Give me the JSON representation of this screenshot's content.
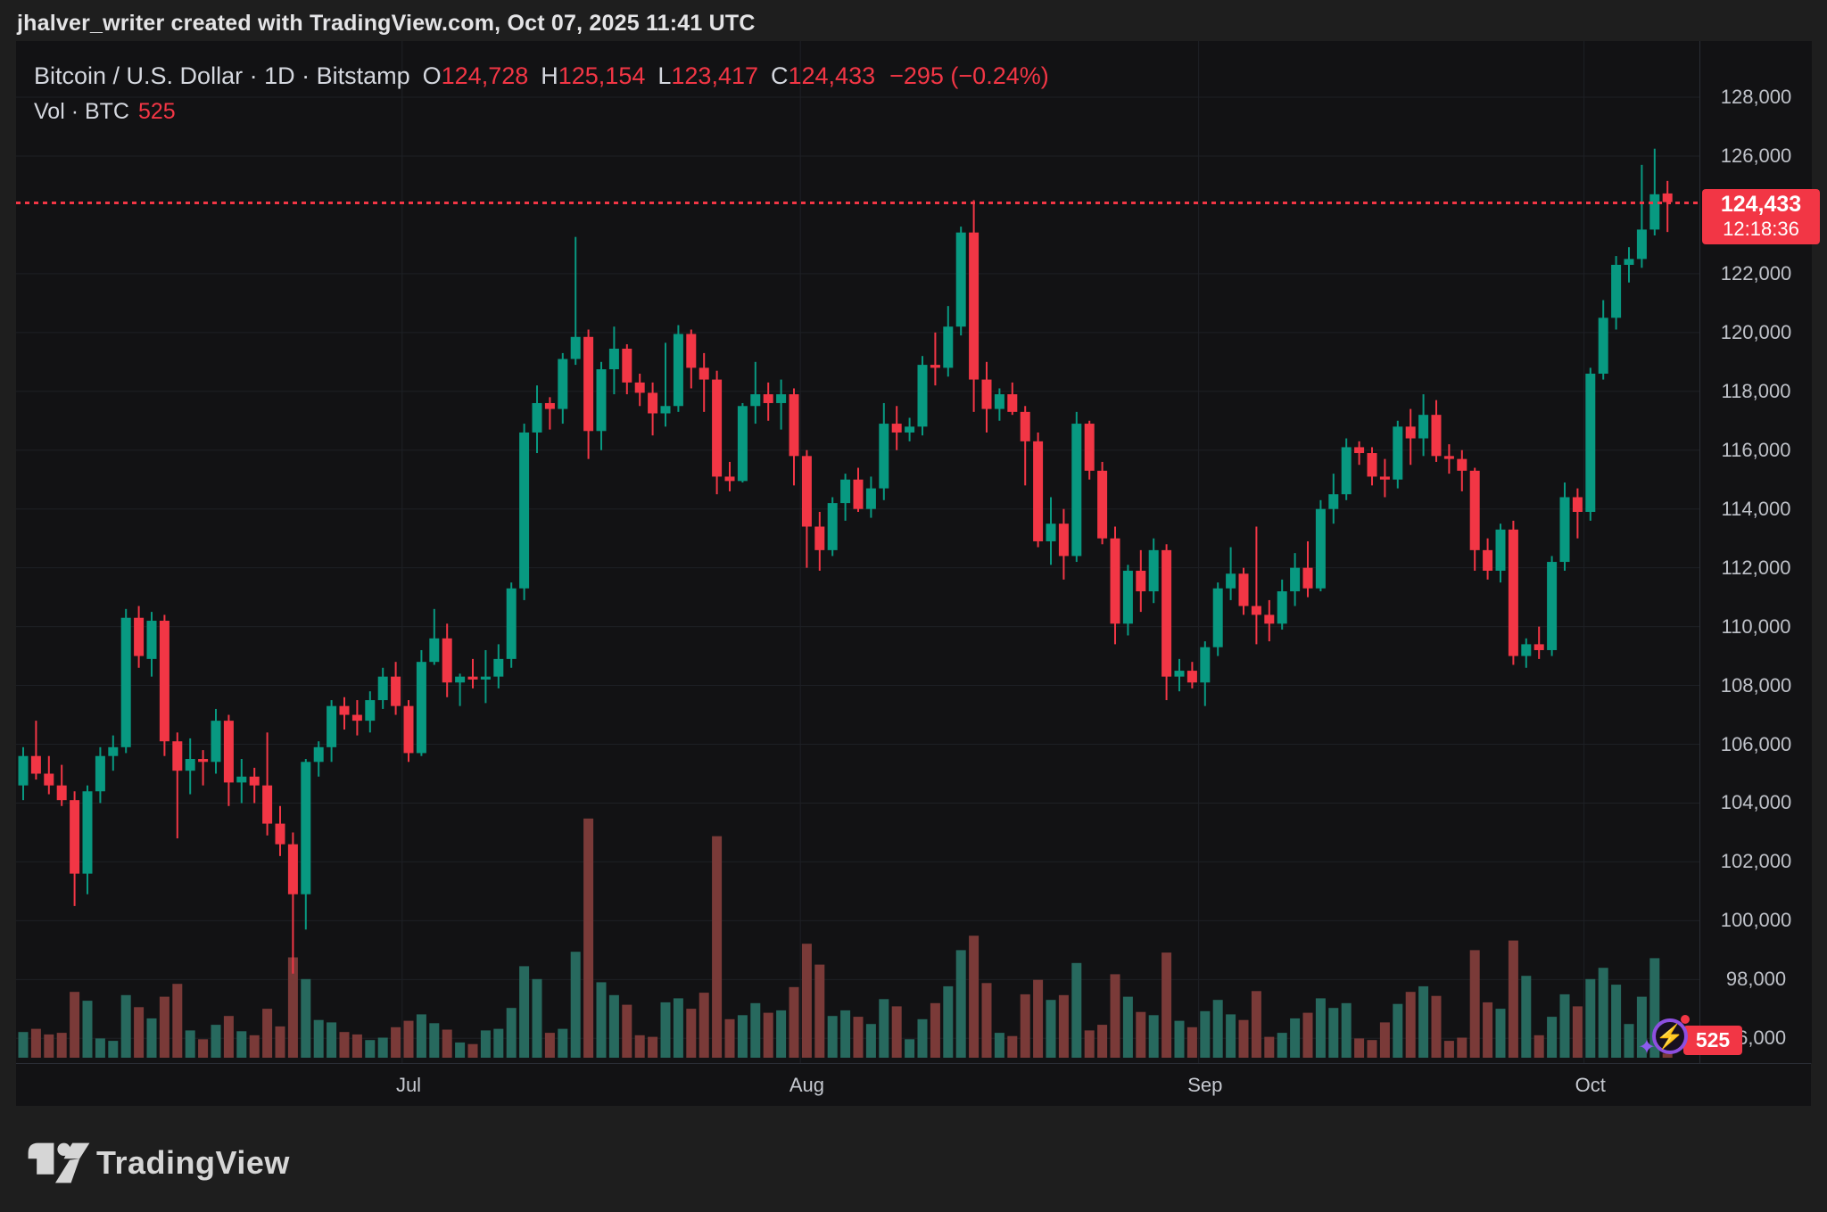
{
  "attribution": "jhalver_writer created with TradingView.com, Oct 07, 2025 11:41 UTC",
  "header": {
    "symbol_line": "Bitcoin / U.S. Dollar · 1D · Bitstamp",
    "ohlc": [
      {
        "k": "O",
        "v": "124,728"
      },
      {
        "k": "H",
        "v": "125,154"
      },
      {
        "k": "L",
        "v": "123,417"
      },
      {
        "k": "C",
        "v": "124,433"
      }
    ],
    "change": "−295 (−0.24%)",
    "vol_label": "Vol · BTC",
    "vol_value": "525"
  },
  "current": {
    "price": 124433,
    "price_label": "124,433",
    "countdown": "12:18:36"
  },
  "volume_badge": "525",
  "footer": {
    "brand": "TradingView"
  },
  "colors": {
    "up": "#089981",
    "down": "#f23645",
    "vol_up": "#27695e",
    "vol_down": "#7a3a38",
    "grid": "#1e2025",
    "accent_red": "#f23645",
    "purple": "#8d4fe0"
  },
  "axis": {
    "price_ticks": [
      {
        "label": "128,000",
        "price": 128000
      },
      {
        "label": "126,000",
        "price": 126000
      },
      {
        "label": "122,000",
        "price": 122000
      },
      {
        "label": "120,000",
        "price": 120000
      },
      {
        "label": "118,000",
        "price": 118000
      },
      {
        "label": "116,000",
        "price": 116000
      },
      {
        "label": "114,000",
        "price": 114000
      },
      {
        "label": "112,000",
        "price": 112000
      },
      {
        "label": "110,000",
        "price": 110000
      },
      {
        "label": "108,000",
        "price": 108000
      },
      {
        "label": "106,000",
        "price": 106000
      },
      {
        "label": "104,000",
        "price": 104000
      },
      {
        "label": "102,000",
        "price": 102000
      },
      {
        "label": "100,000",
        "price": 100000
      },
      {
        "label": "98,000",
        "price": 98000
      },
      {
        "label": "96,000",
        "price": 96000
      }
    ],
    "months": [
      {
        "label": "Jul",
        "index": 30
      },
      {
        "label": "Aug",
        "index": 61
      },
      {
        "label": "Sep",
        "index": 92
      },
      {
        "label": "Oct",
        "index": 122
      }
    ]
  },
  "chart_data": {
    "type": "candlestick_with_volume",
    "title": "Bitcoin / U.S. Dollar",
    "symbol": "BTC/USD",
    "exchange": "Bitstamp",
    "interval": "1D",
    "start_date": "2025-06-01",
    "end_date": "2025-10-07",
    "price_axis_range": [
      95800,
      129800
    ],
    "grid": true,
    "volume_unit": "BTC",
    "last_bar_ohlc": {
      "open": 124728,
      "high": 125154,
      "low": 123417,
      "close": 124433,
      "volume": 525
    },
    "candles_format": [
      "open",
      "high",
      "low",
      "close",
      "volume_btc"
    ],
    "candles": [
      [
        104600,
        105900,
        104100,
        105600,
        3200
      ],
      [
        105600,
        106800,
        104800,
        105000,
        3600
      ],
      [
        105000,
        105600,
        104300,
        104600,
        2900
      ],
      [
        104600,
        105300,
        103900,
        104100,
        3100
      ],
      [
        104100,
        104400,
        100500,
        101600,
        8200
      ],
      [
        101600,
        104600,
        100900,
        104400,
        7100
      ],
      [
        104400,
        105900,
        104000,
        105600,
        2400
      ],
      [
        105600,
        106300,
        105100,
        105900,
        2100
      ],
      [
        105900,
        110600,
        105700,
        110300,
        7800
      ],
      [
        110300,
        110700,
        108600,
        109000,
        6300
      ],
      [
        108900,
        110500,
        108300,
        110200,
        4900
      ],
      [
        110200,
        110400,
        105600,
        106100,
        7600
      ],
      [
        106100,
        106400,
        102800,
        105100,
        9200
      ],
      [
        105100,
        106200,
        104300,
        105500,
        3400
      ],
      [
        105500,
        105800,
        104600,
        105400,
        2300
      ],
      [
        105400,
        107200,
        105000,
        106800,
        4100
      ],
      [
        106800,
        107000,
        103900,
        104700,
        5200
      ],
      [
        104700,
        105500,
        104000,
        104900,
        3300
      ],
      [
        104900,
        105200,
        104000,
        104600,
        2800
      ],
      [
        104600,
        106400,
        102900,
        103300,
        6100
      ],
      [
        103300,
        103900,
        102200,
        102600,
        3900
      ],
      [
        102600,
        103000,
        98200,
        100900,
        12500
      ],
      [
        100900,
        105500,
        99700,
        105400,
        9800
      ],
      [
        105400,
        106100,
        104900,
        105900,
        4700
      ],
      [
        105900,
        107500,
        105400,
        107300,
        4400
      ],
      [
        107300,
        107600,
        106500,
        107000,
        3200
      ],
      [
        107000,
        107500,
        106300,
        106800,
        2900
      ],
      [
        106800,
        107800,
        106400,
        107500,
        2200
      ],
      [
        107500,
        108600,
        107200,
        108300,
        2500
      ],
      [
        108300,
        108800,
        107000,
        107300,
        3800
      ],
      [
        107300,
        107500,
        105400,
        105700,
        4600
      ],
      [
        105700,
        109200,
        105600,
        108800,
        5400
      ],
      [
        108800,
        110600,
        108700,
        109600,
        4300
      ],
      [
        109600,
        110100,
        107600,
        108100,
        3500
      ],
      [
        108100,
        108400,
        107300,
        108300,
        1900
      ],
      [
        108300,
        108900,
        107900,
        108200,
        1700
      ],
      [
        108200,
        109200,
        107400,
        108300,
        3400
      ],
      [
        108300,
        109400,
        107900,
        108900,
        3600
      ],
      [
        108900,
        111500,
        108600,
        111300,
        6200
      ],
      [
        111300,
        116900,
        110900,
        116600,
        11400
      ],
      [
        116600,
        118200,
        115900,
        117600,
        9800
      ],
      [
        117600,
        117800,
        116700,
        117400,
        3100
      ],
      [
        117400,
        119300,
        116900,
        119100,
        3600
      ],
      [
        119100,
        123250,
        118900,
        119850,
        13200
      ],
      [
        119850,
        120100,
        115700,
        116650,
        29800
      ],
      [
        116650,
        119000,
        116000,
        118750,
        9400
      ],
      [
        118750,
        120200,
        117900,
        119450,
        7800
      ],
      [
        119450,
        119600,
        117900,
        118300,
        6600
      ],
      [
        118300,
        118600,
        117500,
        117950,
        2800
      ],
      [
        117950,
        118300,
        116500,
        117250,
        2600
      ],
      [
        117250,
        119650,
        116800,
        117500,
        6900
      ],
      [
        117500,
        120250,
        117300,
        119950,
        7400
      ],
      [
        119950,
        120100,
        118100,
        118800,
        6100
      ],
      [
        118800,
        119300,
        117300,
        118400,
        8100
      ],
      [
        118400,
        118700,
        114500,
        115100,
        27600
      ],
      [
        115100,
        115600,
        114600,
        114950,
        4800
      ],
      [
        114950,
        117600,
        114900,
        117500,
        5300
      ],
      [
        117500,
        119000,
        116900,
        117900,
        6800
      ],
      [
        117900,
        118300,
        117000,
        117600,
        5600
      ],
      [
        117600,
        118400,
        116700,
        117900,
        5900
      ],
      [
        117900,
        118100,
        114800,
        115800,
        8800
      ],
      [
        115800,
        116000,
        112000,
        113400,
        14200
      ],
      [
        113400,
        113900,
        111900,
        112600,
        11600
      ],
      [
        112600,
        114400,
        112400,
        114200,
        5200
      ],
      [
        114200,
        115200,
        113600,
        115000,
        5900
      ],
      [
        115000,
        115400,
        113900,
        114000,
        5100
      ],
      [
        114000,
        115100,
        113700,
        114700,
        4200
      ],
      [
        114700,
        117600,
        114300,
        116900,
        7300
      ],
      [
        116900,
        117500,
        116000,
        116600,
        6400
      ],
      [
        116600,
        117100,
        116300,
        116800,
        2300
      ],
      [
        116800,
        119200,
        116500,
        118900,
        4800
      ],
      [
        118900,
        120000,
        118200,
        118800,
        6800
      ],
      [
        118800,
        120900,
        118500,
        120200,
        8900
      ],
      [
        120200,
        123600,
        119900,
        123400,
        13400
      ],
      [
        123400,
        124500,
        117300,
        118400,
        15200
      ],
      [
        118400,
        119000,
        116600,
        117400,
        9300
      ],
      [
        117400,
        118100,
        117000,
        117900,
        3100
      ],
      [
        117900,
        118300,
        117200,
        117300,
        2700
      ],
      [
        117300,
        117500,
        114800,
        116300,
        7900
      ],
      [
        116300,
        116600,
        112700,
        112900,
        9700
      ],
      [
        112900,
        114400,
        112100,
        113500,
        7200
      ],
      [
        113500,
        114000,
        111600,
        112400,
        7800
      ],
      [
        112400,
        117300,
        112200,
        116900,
        11800
      ],
      [
        116900,
        117000,
        115000,
        115300,
        3400
      ],
      [
        115300,
        115600,
        112800,
        113000,
        4100
      ],
      [
        113000,
        113400,
        109400,
        110100,
        10400
      ],
      [
        110100,
        112100,
        109700,
        111900,
        7600
      ],
      [
        111900,
        112600,
        110500,
        111200,
        5700
      ],
      [
        111200,
        113000,
        110800,
        112600,
        5300
      ],
      [
        112600,
        112800,
        107500,
        108300,
        13100
      ],
      [
        108300,
        108900,
        107800,
        108500,
        4600
      ],
      [
        108500,
        108800,
        107900,
        108100,
        3800
      ],
      [
        108100,
        109500,
        107300,
        109300,
        5800
      ],
      [
        109300,
        111500,
        109000,
        111300,
        7200
      ],
      [
        111300,
        112700,
        110900,
        111800,
        5400
      ],
      [
        111800,
        112000,
        110400,
        110700,
        4700
      ],
      [
        110700,
        113400,
        109400,
        110400,
        8300
      ],
      [
        110400,
        110900,
        109500,
        110100,
        2600
      ],
      [
        110100,
        111600,
        109900,
        111200,
        3100
      ],
      [
        111200,
        112500,
        110700,
        112000,
        4900
      ],
      [
        112000,
        112900,
        111000,
        111300,
        5600
      ],
      [
        111300,
        114300,
        111200,
        114000,
        7400
      ],
      [
        114000,
        115200,
        113500,
        114500,
        6200
      ],
      [
        114500,
        116400,
        114300,
        116100,
        6800
      ],
      [
        116100,
        116300,
        115500,
        115900,
        2400
      ],
      [
        115900,
        116100,
        114800,
        115100,
        2200
      ],
      [
        115100,
        115700,
        114400,
        115000,
        4400
      ],
      [
        115000,
        117000,
        114700,
        116800,
        6700
      ],
      [
        116800,
        117400,
        115500,
        116400,
        8200
      ],
      [
        116400,
        117900,
        115800,
        117200,
        8900
      ],
      [
        117200,
        117700,
        115600,
        115800,
        7700
      ],
      [
        115800,
        116200,
        115200,
        115700,
        2100
      ],
      [
        115700,
        116000,
        114600,
        115300,
        2500
      ],
      [
        115300,
        115400,
        111900,
        112600,
        13400
      ],
      [
        112600,
        113000,
        111600,
        111900,
        6900
      ],
      [
        111900,
        113500,
        111500,
        113300,
        6100
      ],
      [
        113300,
        113600,
        108700,
        109000,
        14600
      ],
      [
        109000,
        109600,
        108600,
        109400,
        10200
      ],
      [
        109400,
        110000,
        108900,
        109200,
        2800
      ],
      [
        109200,
        112400,
        109000,
        112200,
        5100
      ],
      [
        112200,
        114900,
        111900,
        114400,
        7900
      ],
      [
        114400,
        114700,
        113000,
        113900,
        6400
      ],
      [
        113900,
        118800,
        113600,
        118600,
        9800
      ],
      [
        118600,
        121100,
        118400,
        120500,
        11200
      ],
      [
        120500,
        122600,
        120100,
        122300,
        9100
      ],
      [
        122300,
        122900,
        121700,
        122500,
        4200
      ],
      [
        122500,
        125700,
        122200,
        123500,
        7600
      ],
      [
        123500,
        126250,
        123300,
        124700,
        12400
      ],
      [
        124728,
        125154,
        123417,
        124433,
        525
      ]
    ]
  }
}
